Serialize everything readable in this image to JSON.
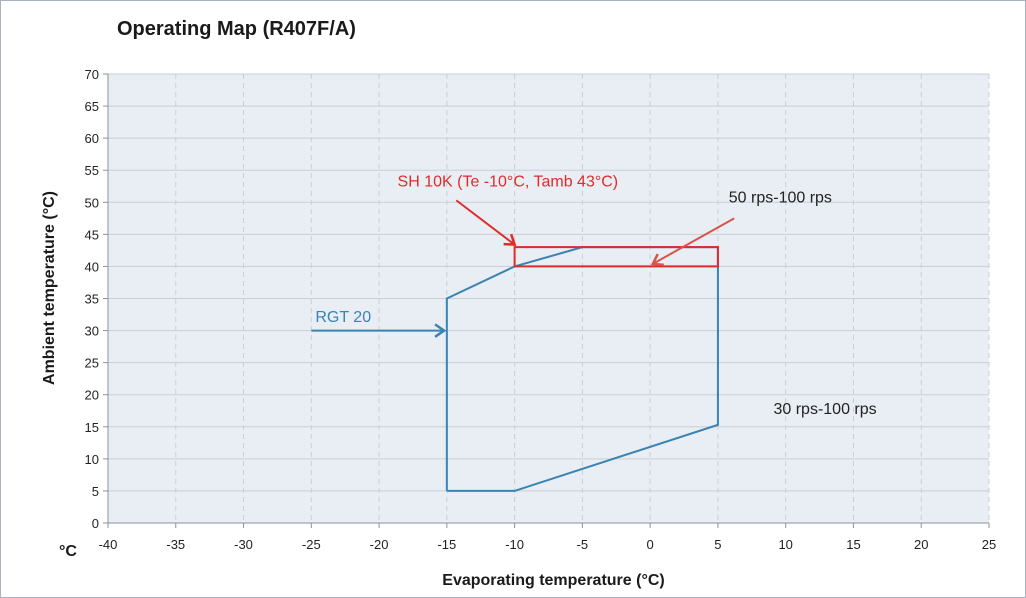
{
  "chart_data": {
    "type": "line",
    "title": "Operating Map (R407F/A)",
    "xlabel": "Evaporating temperature (°C)",
    "ylabel": "Ambient  temperature (°C)",
    "unit_label": "°C",
    "xlim": [
      -40,
      25
    ],
    "ylim": [
      0,
      70
    ],
    "xticks": [
      -40,
      -35,
      -30,
      -25,
      -20,
      -15,
      -10,
      -5,
      0,
      5,
      10,
      15,
      20,
      25
    ],
    "yticks": [
      0,
      5,
      10,
      15,
      20,
      25,
      30,
      35,
      40,
      45,
      50,
      55,
      60,
      65,
      70
    ],
    "grid": true,
    "colors": {
      "blue": "#3a83b2",
      "red": "#e02b2b",
      "orange": "#d9534a",
      "plot_bg": "#e8eef3",
      "grid": "#c9cfd5"
    },
    "series": [
      {
        "color": "#3a83b2",
        "points": [
          [
            -15,
            5
          ],
          [
            -15,
            35
          ],
          [
            -10,
            40
          ],
          [
            -5,
            43
          ],
          [
            5,
            43
          ],
          [
            5,
            15.3
          ],
          [
            -10,
            5
          ],
          [
            -15,
            5
          ]
        ]
      },
      {
        "color": "#e02b2b",
        "points": [
          [
            -10,
            40
          ],
          [
            -10,
            43
          ],
          [
            -5,
            43
          ],
          [
            5,
            43
          ],
          [
            5,
            40
          ],
          [
            -10,
            40
          ]
        ]
      }
    ],
    "annotations": [
      {
        "text": "SH 10K (Te -10°C, Tamb 43°C)",
        "x": -10.5,
        "y": 52.5,
        "color": "#e02b2b",
        "anchor": "middle",
        "arrow": {
          "from": [
            -14.3,
            50.3
          ],
          "to": [
            -10,
            43.4
          ],
          "color": "#e02b2b"
        }
      },
      {
        "text": "50 rps-100 rps",
        "x": 5.8,
        "y": 50,
        "color": "#222222",
        "anchor": "start",
        "arrow": {
          "from": [
            6.2,
            47.5
          ],
          "to": [
            0.2,
            40.4
          ],
          "color": "#d9534a"
        }
      },
      {
        "text": "RGT 20",
        "x": -24.7,
        "y": 31.3,
        "color": "#3a83b2",
        "anchor": "start",
        "arrow": {
          "from": [
            -25,
            30
          ],
          "to": [
            -15.2,
            30
          ],
          "color": "#3a83b2"
        }
      },
      {
        "text": "30 rps-100 rps",
        "x": 9.1,
        "y": 17,
        "color": "#222222",
        "anchor": "start"
      }
    ]
  }
}
